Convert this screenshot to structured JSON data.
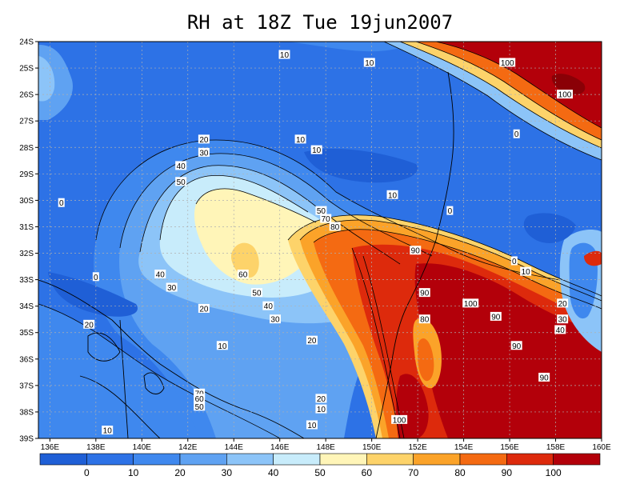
{
  "title": "RH at 18Z Tue 19jun2007",
  "lat_ticks": [
    "24S",
    "25S",
    "26S",
    "27S",
    "28S",
    "29S",
    "30S",
    "31S",
    "32S",
    "33S",
    "34S",
    "35S",
    "36S",
    "37S",
    "38S",
    "39S"
  ],
  "lon_ticks": [
    "136E",
    "138E",
    "140E",
    "142E",
    "144E",
    "146E",
    "148E",
    "150E",
    "152E",
    "154E",
    "156E",
    "158E",
    "160E"
  ],
  "colorbar": {
    "labels": [
      "0",
      "10",
      "20",
      "30",
      "40",
      "50",
      "60",
      "70",
      "80",
      "90",
      "100"
    ],
    "colors": [
      "#1f5fd6",
      "#2d72e6",
      "#3f88ee",
      "#5fa2f2",
      "#8cc4f8",
      "#c8ecfb",
      "#fff5b8",
      "#fdd36a",
      "#fba329",
      "#f46a12",
      "#dd2a0c",
      "#b3000a"
    ]
  },
  "chart_data": {
    "type": "heatmap",
    "variable": "RH",
    "title": "RH at 18Z Tue 19jun2007",
    "lon_range": [
      135.5,
      160
    ],
    "lat_range": [
      -39,
      -24
    ],
    "contour_levels": [
      0,
      10,
      20,
      30,
      40,
      50,
      60,
      70,
      80,
      90,
      100
    ],
    "contour_labels": [
      {
        "text": "10",
        "lon": 146.2,
        "lat": -24.5
      },
      {
        "text": "10",
        "lon": 149.9,
        "lat": -24.8
      },
      {
        "text": "100",
        "lon": 155.9,
        "lat": -24.8
      },
      {
        "text": "100",
        "lon": 158.4,
        "lat": -26.0
      },
      {
        "text": "0",
        "lon": 156.3,
        "lat": -27.5
      },
      {
        "text": "20",
        "lon": 142.7,
        "lat": -27.7
      },
      {
        "text": "10",
        "lon": 146.9,
        "lat": -27.7
      },
      {
        "text": "10",
        "lon": 147.6,
        "lat": -28.1
      },
      {
        "text": "30",
        "lon": 142.7,
        "lat": -28.2
      },
      {
        "text": "40",
        "lon": 141.7,
        "lat": -28.7
      },
      {
        "text": "50",
        "lon": 141.7,
        "lat": -29.3
      },
      {
        "text": "0",
        "lon": 136.5,
        "lat": -30.1
      },
      {
        "text": "10",
        "lon": 150.9,
        "lat": -29.8
      },
      {
        "text": "0",
        "lon": 153.4,
        "lat": -30.4
      },
      {
        "text": "50",
        "lon": 147.8,
        "lat": -30.4
      },
      {
        "text": "70",
        "lon": 148.0,
        "lat": -30.7
      },
      {
        "text": "80",
        "lon": 148.4,
        "lat": -31.0
      },
      {
        "text": "90",
        "lon": 151.9,
        "lat": -31.9
      },
      {
        "text": "0",
        "lon": 156.2,
        "lat": -32.3
      },
      {
        "text": "10",
        "lon": 156.7,
        "lat": -32.7
      },
      {
        "text": "60",
        "lon": 144.4,
        "lat": -32.8
      },
      {
        "text": "0",
        "lon": 138.0,
        "lat": -32.9
      },
      {
        "text": "40",
        "lon": 140.8,
        "lat": -32.8
      },
      {
        "text": "30",
        "lon": 141.3,
        "lat": -33.3
      },
      {
        "text": "50",
        "lon": 145.0,
        "lat": -33.5
      },
      {
        "text": "90",
        "lon": 152.3,
        "lat": -33.5
      },
      {
        "text": "100",
        "lon": 154.3,
        "lat": -33.9
      },
      {
        "text": "20",
        "lon": 158.3,
        "lat": -33.9
      },
      {
        "text": "40",
        "lon": 145.5,
        "lat": -34.0
      },
      {
        "text": "20",
        "lon": 142.7,
        "lat": -34.1
      },
      {
        "text": "90",
        "lon": 155.4,
        "lat": -34.4
      },
      {
        "text": "30",
        "lon": 158.3,
        "lat": -34.5
      },
      {
        "text": "30",
        "lon": 145.8,
        "lat": -34.5
      },
      {
        "text": "80",
        "lon": 152.3,
        "lat": -34.5
      },
      {
        "text": "20",
        "lon": 137.7,
        "lat": -34.7
      },
      {
        "text": "40",
        "lon": 158.2,
        "lat": -34.9
      },
      {
        "text": "20",
        "lon": 147.4,
        "lat": -35.3
      },
      {
        "text": "10",
        "lon": 143.5,
        "lat": -35.5
      },
      {
        "text": "90",
        "lon": 156.3,
        "lat": -35.5
      },
      {
        "text": "90",
        "lon": 157.5,
        "lat": -36.7
      },
      {
        "text": "70",
        "lon": 142.5,
        "lat": -37.3
      },
      {
        "text": "20",
        "lon": 147.8,
        "lat": -37.5
      },
      {
        "text": "60",
        "lon": 142.5,
        "lat": -37.5
      },
      {
        "text": "50",
        "lon": 142.5,
        "lat": -37.8
      },
      {
        "text": "10",
        "lon": 147.8,
        "lat": -37.9
      },
      {
        "text": "100",
        "lon": 151.2,
        "lat": -38.3
      },
      {
        "text": "10",
        "lon": 147.4,
        "lat": -38.5
      },
      {
        "text": "10",
        "lon": 138.5,
        "lat": -38.7
      }
    ]
  }
}
